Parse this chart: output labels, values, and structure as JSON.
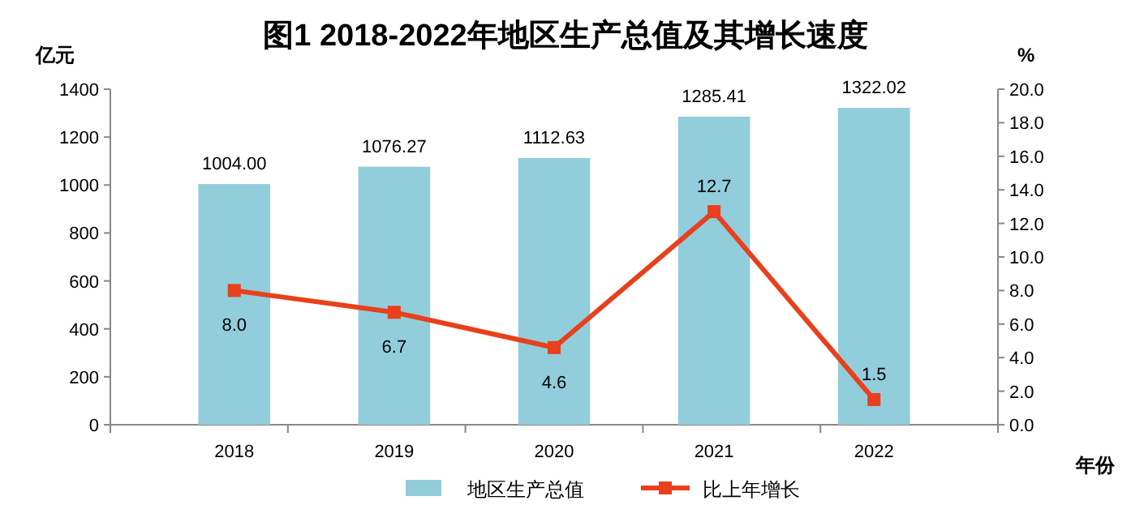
{
  "chart_data": {
    "type": "bar",
    "title": "图1   2018-2022年地区生产总值及其增长速度",
    "xlabel": "年份",
    "ylabel": "亿元",
    "y2label": "%",
    "categories": [
      "2018",
      "2019",
      "2020",
      "2021",
      "2022"
    ],
    "series": [
      {
        "name": "地区生产总值",
        "color": "#92cddc",
        "values": [
          1004.0,
          1076.27,
          1112.63,
          1285.41,
          1322.02
        ],
        "value_labels": [
          "1004.00",
          "1076.27",
          "1112.63",
          "1285.41",
          "1322.02"
        ]
      },
      {
        "name": "比上年增长",
        "type": "line",
        "axis": "y2",
        "color": "#e8401c",
        "marker": "square",
        "values": [
          8.0,
          6.7,
          4.6,
          12.7,
          1.5
        ],
        "value_labels": [
          "8.0",
          "6.7",
          "4.6",
          "12.7",
          "1.5"
        ]
      }
    ],
    "ylim": [
      0,
      1400
    ],
    "yticks": [
      0,
      200,
      400,
      600,
      800,
      1000,
      1200,
      1400
    ],
    "y2lim": [
      0,
      20
    ],
    "y2ticks": [
      {
        "value": 0,
        "label": "0.0"
      },
      {
        "value": 2,
        "label": "2.0"
      },
      {
        "value": 4,
        "label": "4.0"
      },
      {
        "value": 6,
        "label": "6.0"
      },
      {
        "value": 8,
        "label": "8.0"
      },
      {
        "value": 10,
        "label": "10.0"
      },
      {
        "value": 12,
        "label": "12.0"
      },
      {
        "value": 14,
        "label": "14.0"
      },
      {
        "value": 16,
        "label": "16.0"
      },
      {
        "value": 18,
        "label": "18.0"
      },
      {
        "value": 20,
        "label": "20.0"
      }
    ],
    "legend": "bottom",
    "grid": false
  }
}
